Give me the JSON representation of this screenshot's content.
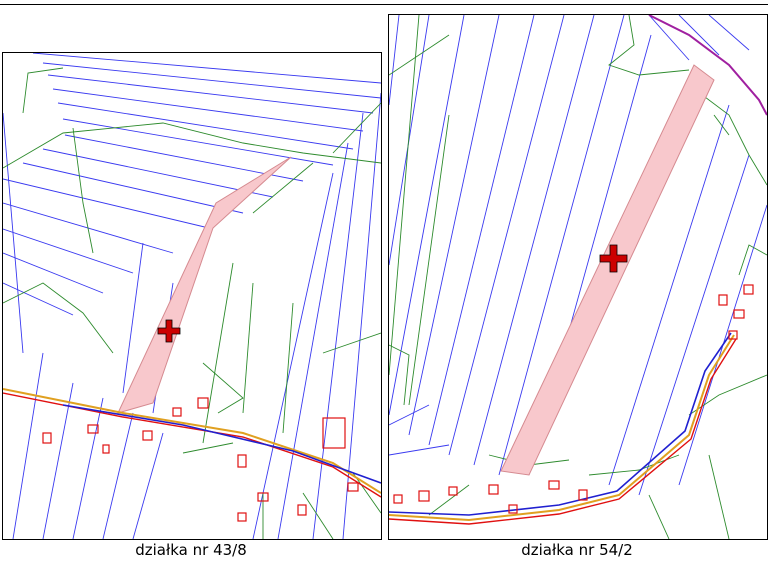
{
  "colors": {
    "parcel_line": "#3a3af0",
    "building_line": "#2e8b2e",
    "parcel_fill": "#f8c8cc",
    "parcel_edge": "#d58a90",
    "road_red": "#e01010",
    "road_orange": "#e0a020",
    "road_blue": "#2020d0",
    "marker": "#cc0000"
  },
  "maps": {
    "left": {
      "caption": "działka nr 43/8",
      "marker_icon": "cross-marker-icon"
    },
    "right": {
      "caption": "działka nr 54/2",
      "marker_icon": "cross-marker-icon"
    }
  }
}
